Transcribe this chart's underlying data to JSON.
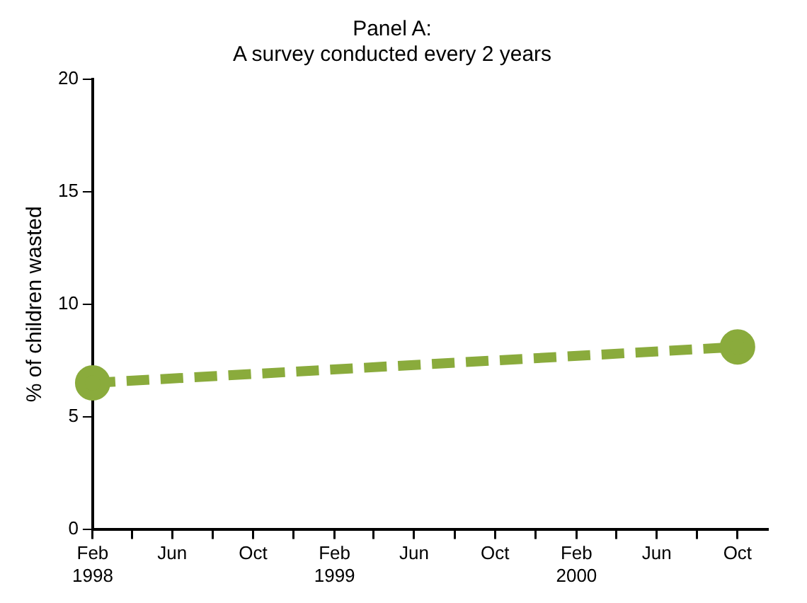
{
  "chart_data": {
    "type": "line",
    "title": "Panel A:",
    "subtitle": "A survey conducted every 2 years",
    "ylabel": "% of children wasted",
    "x": [
      "1998-02",
      "2000-10"
    ],
    "series": [
      {
        "color": "#8aab3c",
        "values": [
          6.5,
          8.1
        ]
      }
    ],
    "xlim": [
      "1998-02",
      "2000-11-15"
    ],
    "xticks": [
      {
        "value": "1998-02",
        "label": "Feb 1998"
      },
      {
        "value": "1998-04",
        "label": null
      },
      {
        "value": "1998-06",
        "label": "Jun"
      },
      {
        "value": "1998-08",
        "label": null
      },
      {
        "value": "1998-10",
        "label": "Oct"
      },
      {
        "value": "1998-12",
        "label": null
      },
      {
        "value": "1999-02",
        "label": "Feb 1999"
      },
      {
        "value": "1999-04",
        "label": null
      },
      {
        "value": "1999-06",
        "label": "Jun"
      },
      {
        "value": "1999-08",
        "label": null
      },
      {
        "value": "1999-10",
        "label": "Oct"
      },
      {
        "value": "1999-12",
        "label": null
      },
      {
        "value": "2000-02",
        "label": "Feb 2000"
      },
      {
        "value": "2000-04",
        "label": null
      },
      {
        "value": "2000-06",
        "label": "Jun"
      },
      {
        "value": "2000-08",
        "label": null
      },
      {
        "value": "2000-10",
        "label": "Oct"
      }
    ],
    "ylim": [
      0,
      20
    ],
    "yticks": [
      0,
      5,
      10,
      15,
      20
    ],
    "grid": false,
    "legend": false,
    "marker": "circle",
    "line_style": "dashed"
  }
}
